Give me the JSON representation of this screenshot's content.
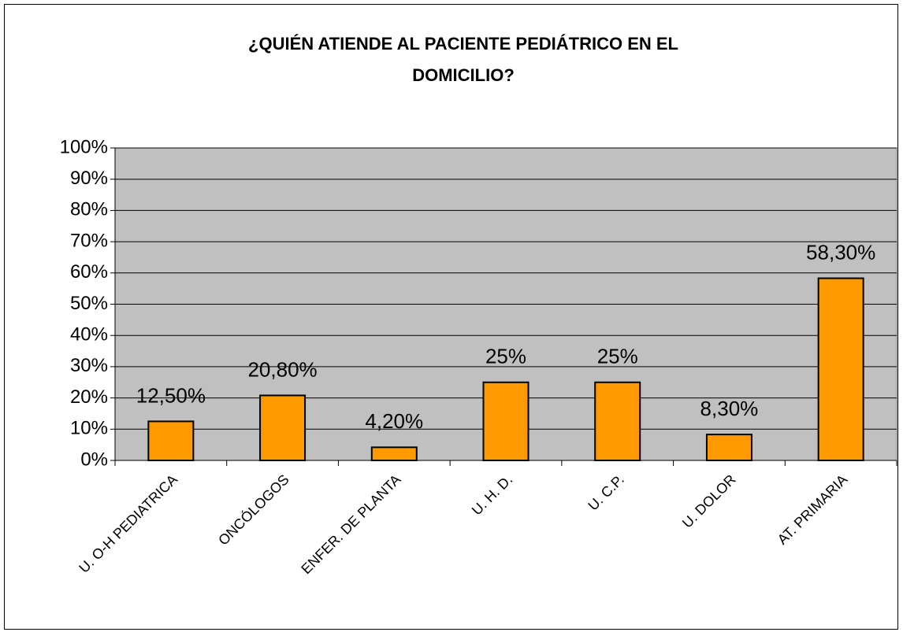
{
  "chart_data": {
    "type": "bar",
    "title": [
      "¿QUIÉN ATIENDE AL PACIENTE PEDIÁTRICO EN EL",
      "DOMICILIO?"
    ],
    "categories": [
      "U. O-H PEDIATRICA",
      "ONCÓLOGOS",
      "ENFER. DE PLANTA",
      "U. H. D.",
      "U. C.P.",
      "U. DOLOR",
      "AT. PRIMARIA"
    ],
    "values": [
      12.5,
      20.8,
      4.2,
      25,
      25,
      8.3,
      58.3
    ],
    "value_labels": [
      "12,50%",
      "20,80%",
      "4,20%",
      "25%",
      "25%",
      "8,30%",
      "58,30%"
    ],
    "color": "#ff9900",
    "ylim": [
      0,
      100
    ],
    "yticks": [
      {
        "value": 0,
        "label": "0%"
      },
      {
        "value": 10,
        "label": "10%"
      },
      {
        "value": 20,
        "label": "20%"
      },
      {
        "value": 30,
        "label": "30%"
      },
      {
        "value": 40,
        "label": "40%"
      },
      {
        "value": 50,
        "label": "50%"
      },
      {
        "value": 60,
        "label": "60%"
      },
      {
        "value": 70,
        "label": "70%"
      },
      {
        "value": 80,
        "label": "80%"
      },
      {
        "value": 90,
        "label": "90%"
      },
      {
        "value": 100,
        "label": "100%"
      }
    ],
    "grid": true
  }
}
